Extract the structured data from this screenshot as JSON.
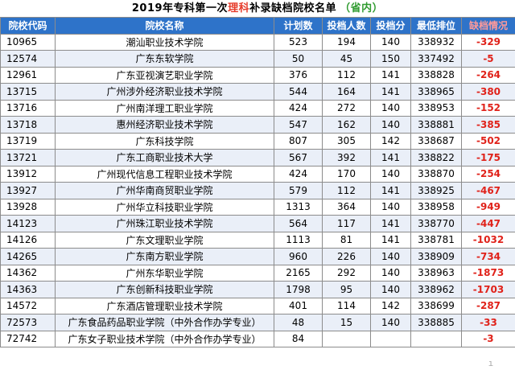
{
  "title": {
    "prefix": "2019年专科第一次",
    "highlight": "理科",
    "suffix": "补录缺档院校名单",
    "tag": "（省内）"
  },
  "columns": [
    "院校代码",
    "院校名称",
    "计划数",
    "投档人数",
    "投档分",
    "最低排位",
    "缺档情况"
  ],
  "rows": [
    [
      "10965",
      "潮汕职业技术学院",
      "523",
      "194",
      "140",
      "338932",
      "-329"
    ],
    [
      "12574",
      "广东东软学院",
      "50",
      "45",
      "150",
      "337492",
      "-5"
    ],
    [
      "12961",
      "广东亚视演艺职业学院",
      "376",
      "112",
      "141",
      "338828",
      "-264"
    ],
    [
      "13715",
      "广州涉外经济职业技术学院",
      "544",
      "164",
      "141",
      "338965",
      "-380"
    ],
    [
      "13716",
      "广州南洋理工职业学院",
      "424",
      "272",
      "140",
      "338953",
      "-152"
    ],
    [
      "13718",
      "惠州经济职业技术学院",
      "547",
      "162",
      "140",
      "338881",
      "-385"
    ],
    [
      "13719",
      "广东科技学院",
      "807",
      "305",
      "142",
      "338687",
      "-502"
    ],
    [
      "13721",
      "广东工商职业技术大学",
      "567",
      "392",
      "141",
      "338822",
      "-175"
    ],
    [
      "13912",
      "广州现代信息工程职业技术学院",
      "424",
      "170",
      "140",
      "338870",
      "-254"
    ],
    [
      "13927",
      "广州华南商贸职业学院",
      "579",
      "112",
      "141",
      "338925",
      "-467"
    ],
    [
      "13928",
      "广州华立科技职业学院",
      "1313",
      "364",
      "140",
      "338958",
      "-949"
    ],
    [
      "14123",
      "广州珠江职业技术学院",
      "564",
      "117",
      "141",
      "338770",
      "-447"
    ],
    [
      "14126",
      "广东文理职业学院",
      "1113",
      "81",
      "141",
      "338781",
      "-1032"
    ],
    [
      "14265",
      "广东南方职业学院",
      "960",
      "226",
      "140",
      "338909",
      "-734"
    ],
    [
      "14362",
      "广州东华职业学院",
      "2165",
      "292",
      "140",
      "338963",
      "-1873"
    ],
    [
      "14363",
      "广东创新科技职业学院",
      "1798",
      "95",
      "140",
      "338962",
      "-1703"
    ],
    [
      "14572",
      "广东酒店管理职业技术学院",
      "401",
      "114",
      "142",
      "338699",
      "-287"
    ],
    [
      "72573",
      "广东食品药品职业学院（中外合作办学专业）",
      "48",
      "15",
      "140",
      "338885",
      "-33"
    ],
    [
      "72742",
      "广东女子职业技术学院（中外合作办学专业）",
      "84",
      "",
      "",
      "",
      "-3"
    ]
  ],
  "colors": {
    "header_bg": "#2e73c9",
    "alt_row_bg": "#eaeff8",
    "gap_text": "#e0221a",
    "title_highlight": "#e63b2a",
    "title_tag": "#2f9b2f"
  }
}
